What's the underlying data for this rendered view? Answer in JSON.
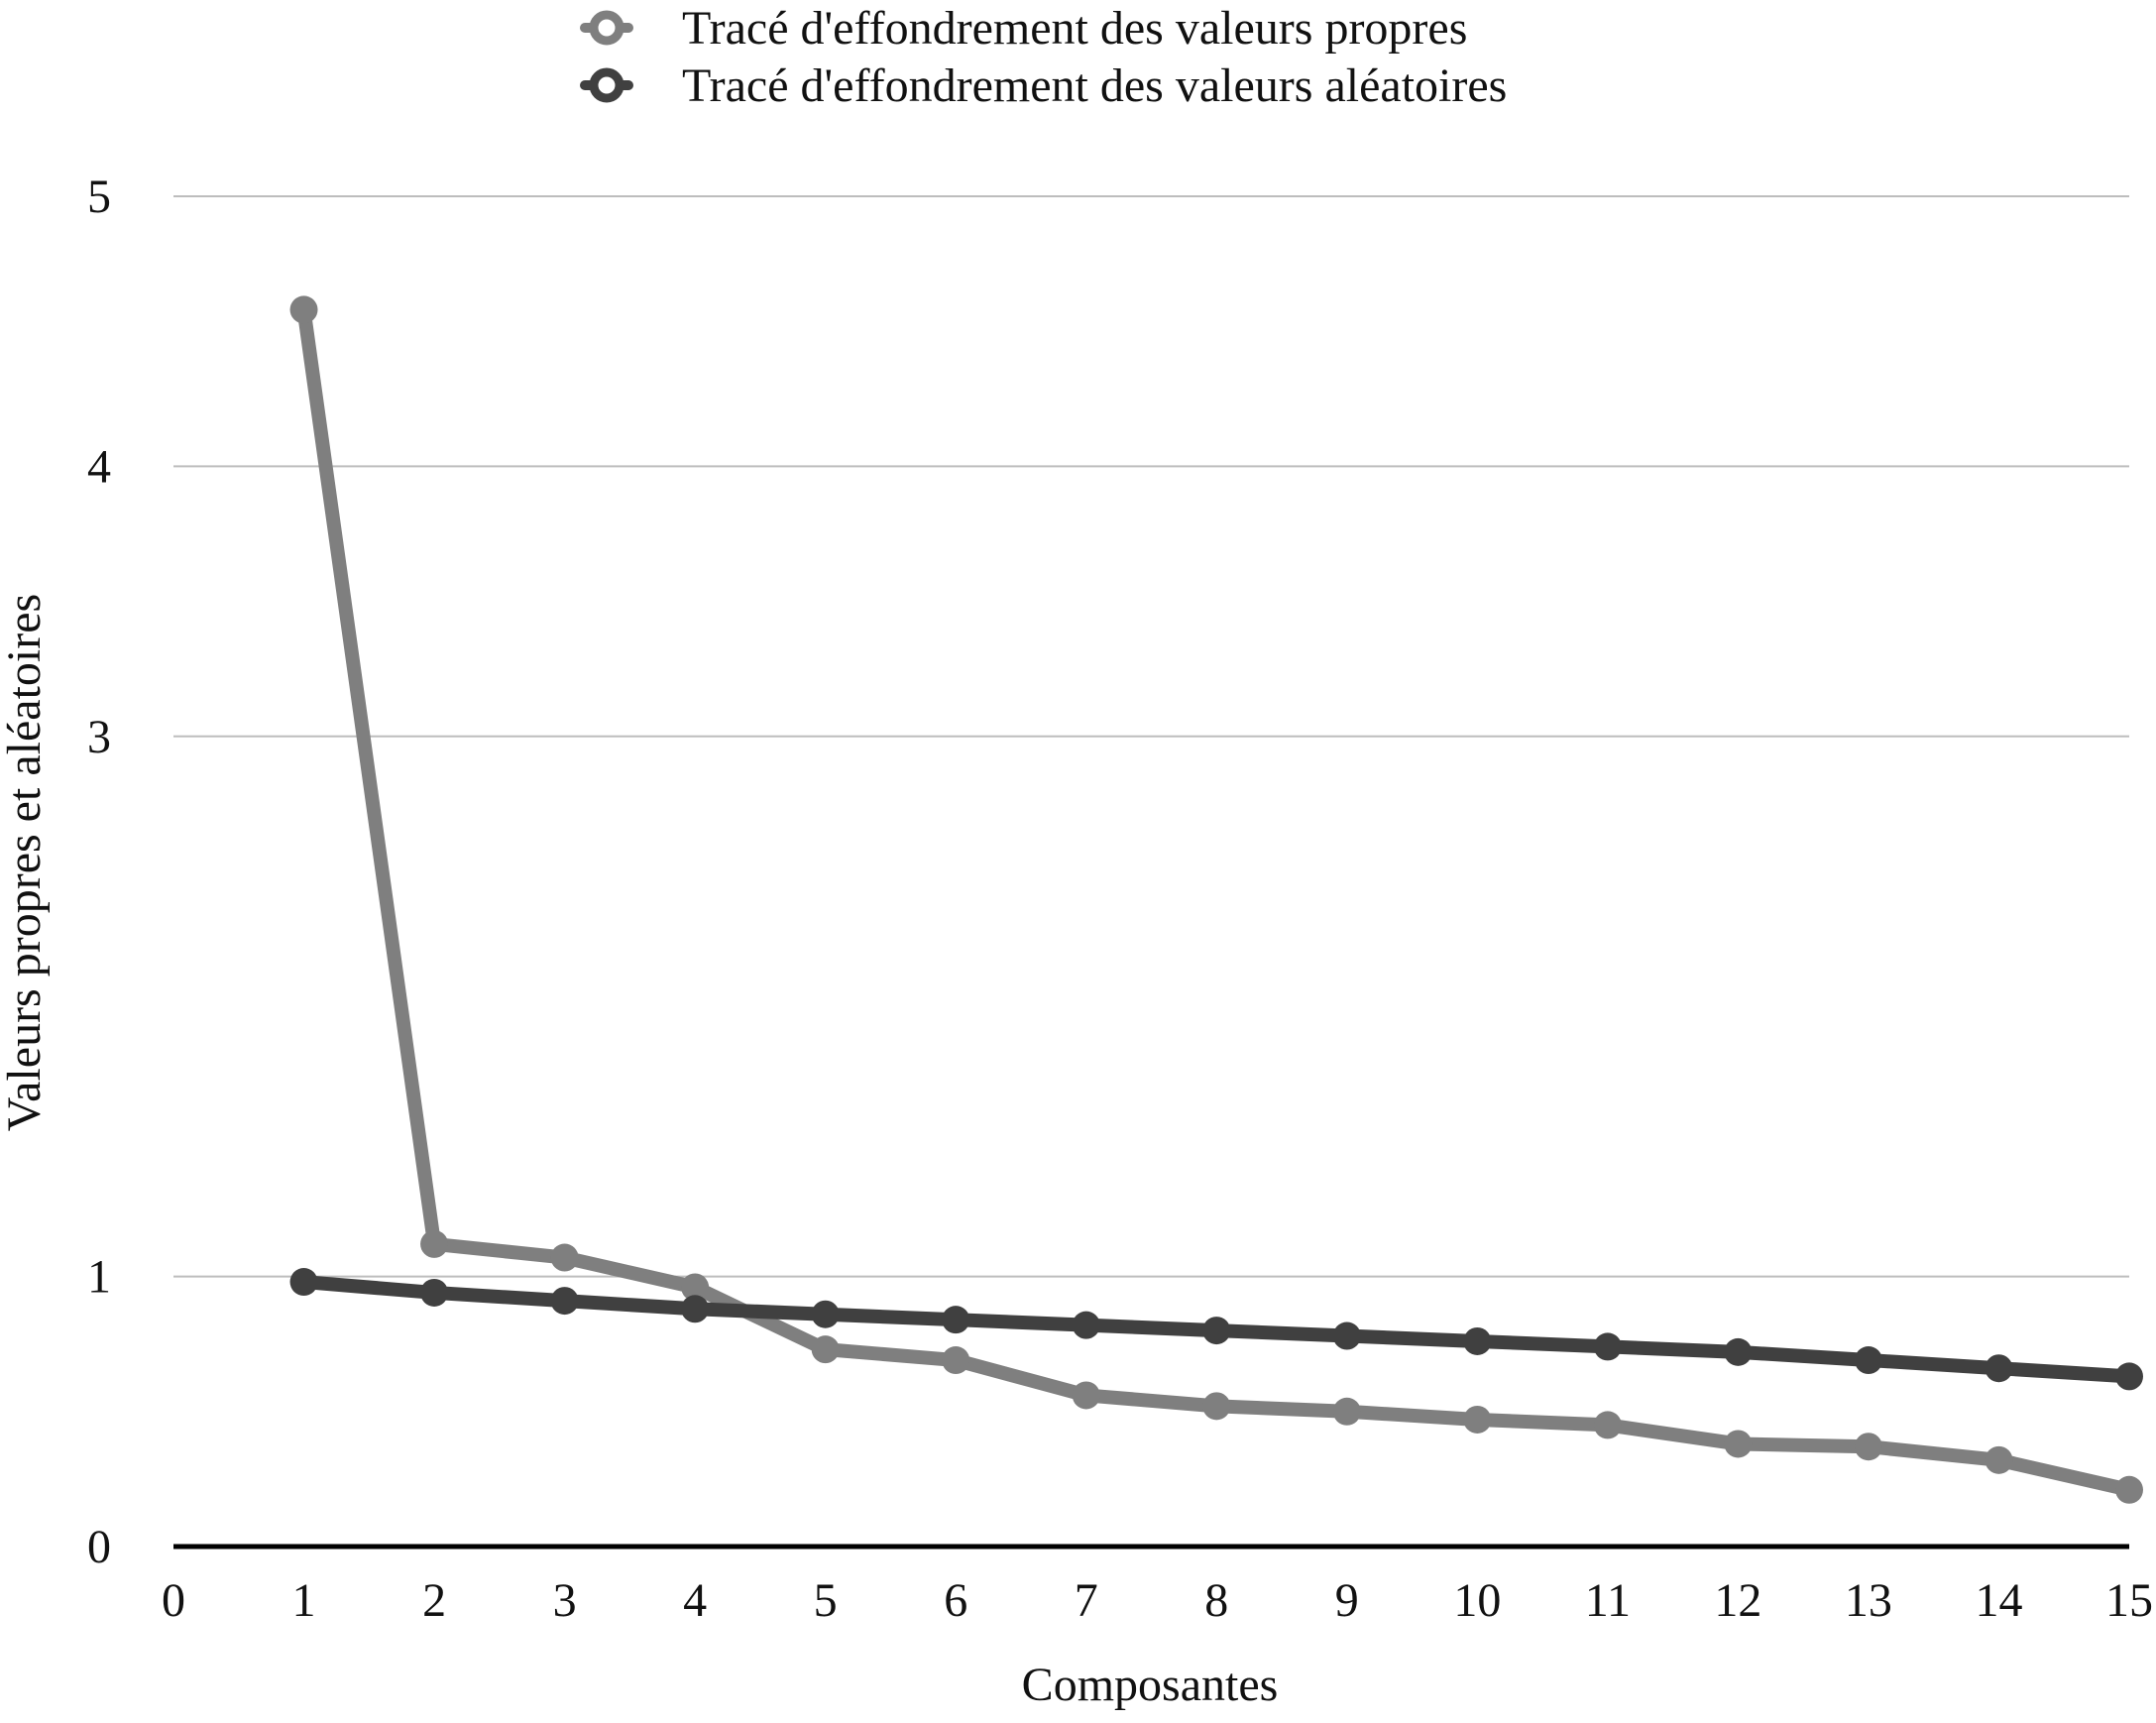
{
  "colors": {
    "series_light": "#7f7f7f",
    "series_dark": "#404040",
    "gridline": "#bdbdbd",
    "axis": "#000000",
    "background": "#ffffff"
  },
  "chart_data": {
    "type": "line",
    "title": "",
    "xlabel": "Composantes",
    "ylabel": "Valeurs propres et aléatoires",
    "xlim": [
      0,
      15
    ],
    "ylim": [
      0,
      5
    ],
    "x_ticks": [
      0,
      1,
      2,
      3,
      4,
      5,
      6,
      7,
      8,
      9,
      10,
      11,
      12,
      13,
      14,
      15
    ],
    "x_tick_labels": [
      "0",
      "1",
      "2",
      "3",
      "4",
      "5",
      "6",
      "7",
      "8",
      "9",
      "10",
      "11",
      "12",
      "13",
      "14",
      "15"
    ],
    "y_ticks": [
      0,
      1,
      3,
      4,
      5
    ],
    "y_tick_labels": [
      "0",
      "1",
      "3",
      "4",
      "5"
    ],
    "gridlines": "horizontal",
    "legend_position": "top-center",
    "x": [
      1,
      2,
      3,
      4,
      5,
      6,
      7,
      8,
      9,
      10,
      11,
      12,
      13,
      14,
      15
    ],
    "series": [
      {
        "name": "Tracé d'effondrement des valeurs propres",
        "color": "#7f7f7f",
        "values": [
          4.58,
          1.12,
          1.07,
          0.96,
          0.73,
          0.69,
          0.56,
          0.52,
          0.5,
          0.47,
          0.45,
          0.38,
          0.37,
          0.32,
          0.21
        ]
      },
      {
        "name": "Tracé d'effondrement des valeurs aléatoires",
        "color": "#404040",
        "values": [
          0.98,
          0.94,
          0.91,
          0.88,
          0.86,
          0.84,
          0.82,
          0.8,
          0.78,
          0.76,
          0.74,
          0.72,
          0.69,
          0.66,
          0.63
        ]
      }
    ]
  }
}
